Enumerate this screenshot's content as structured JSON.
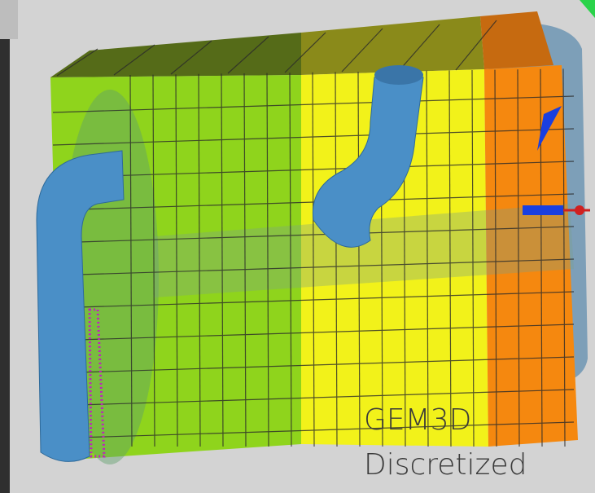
{
  "caption": {
    "line1": "GEM3D",
    "line2": "Discretized"
  }
}
